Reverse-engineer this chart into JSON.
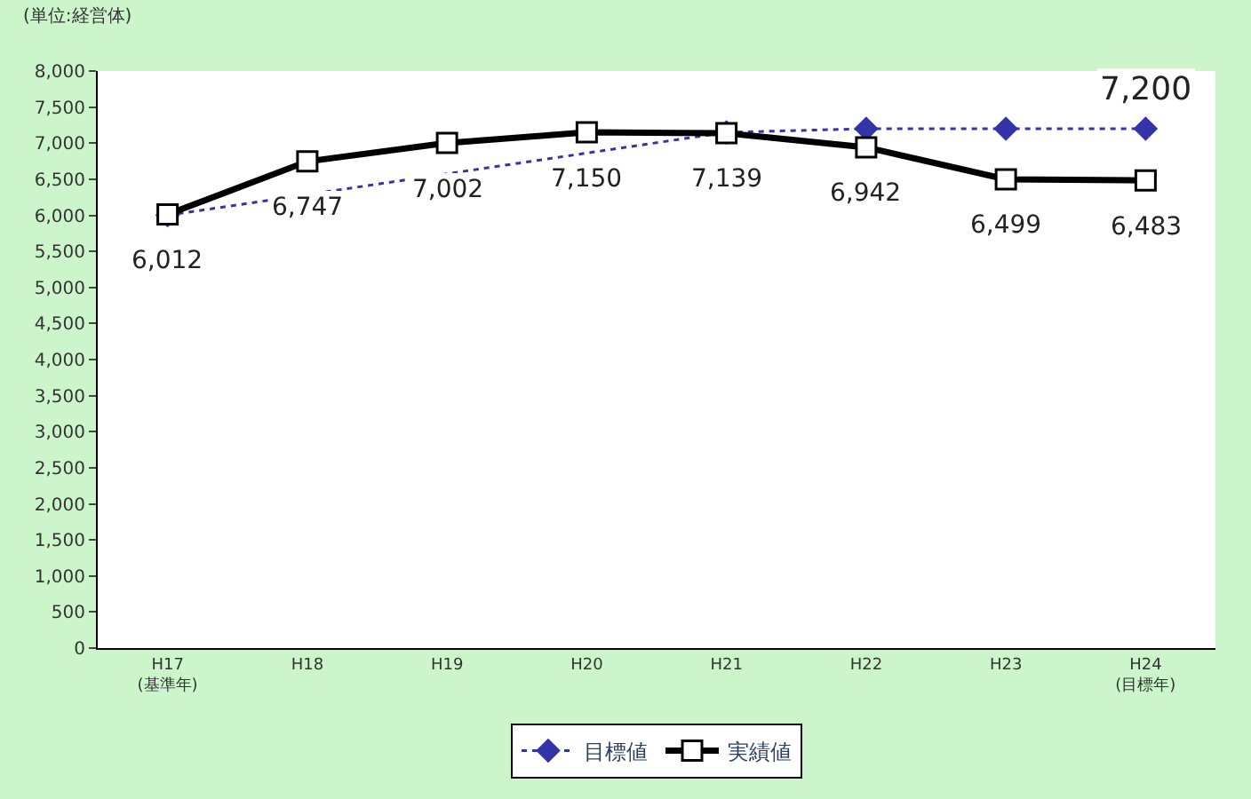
{
  "chart_data": {
    "type": "line",
    "annotations": [
      "(単位:経営体)"
    ],
    "categories": [
      "H17\n(基準年)",
      "H18",
      "H19",
      "H20",
      "H21",
      "H22",
      "H23",
      "H24\n(目標年)"
    ],
    "series": [
      {
        "name": "目標値",
        "color": "#3333aa",
        "marker": "diamond",
        "line_style": "dotted",
        "values": [
          6000,
          null,
          null,
          null,
          7150,
          7200,
          7200,
          7200
        ],
        "value_labels": [
          null,
          null,
          null,
          null,
          null,
          null,
          null,
          "7,200"
        ]
      },
      {
        "name": "実績値",
        "color": "#000000",
        "marker": "square",
        "line_style": "solid",
        "values": [
          6012,
          6747,
          7002,
          7150,
          7139,
          6942,
          6499,
          6483
        ],
        "value_labels": [
          "6,012",
          "6,747",
          "7,002",
          "7,150",
          "7,139",
          "6,942",
          "6,499",
          "6,483"
        ]
      }
    ],
    "ylim": [
      0,
      8000
    ],
    "yticks": [
      {
        "value": 0,
        "label": "0"
      },
      {
        "value": 500,
        "label": "500"
      },
      {
        "value": 1000,
        "label": "1,000"
      },
      {
        "value": 1500,
        "label": "1,500"
      },
      {
        "value": 2000,
        "label": "2,000"
      },
      {
        "value": 2500,
        "label": "2,500"
      },
      {
        "value": 3000,
        "label": "3,000"
      },
      {
        "value": 3500,
        "label": "3,500"
      },
      {
        "value": 4000,
        "label": "4,000"
      },
      {
        "value": 4500,
        "label": "4,500"
      },
      {
        "value": 5000,
        "label": "5,000"
      },
      {
        "value": 5500,
        "label": "5,500"
      },
      {
        "value": 6000,
        "label": "6,000"
      },
      {
        "value": 6500,
        "label": "6,500"
      },
      {
        "value": 7000,
        "label": "7,000"
      },
      {
        "value": 7500,
        "label": "7,500"
      },
      {
        "value": 8000,
        "label": "8,000"
      }
    ],
    "legend": "bottom"
  }
}
